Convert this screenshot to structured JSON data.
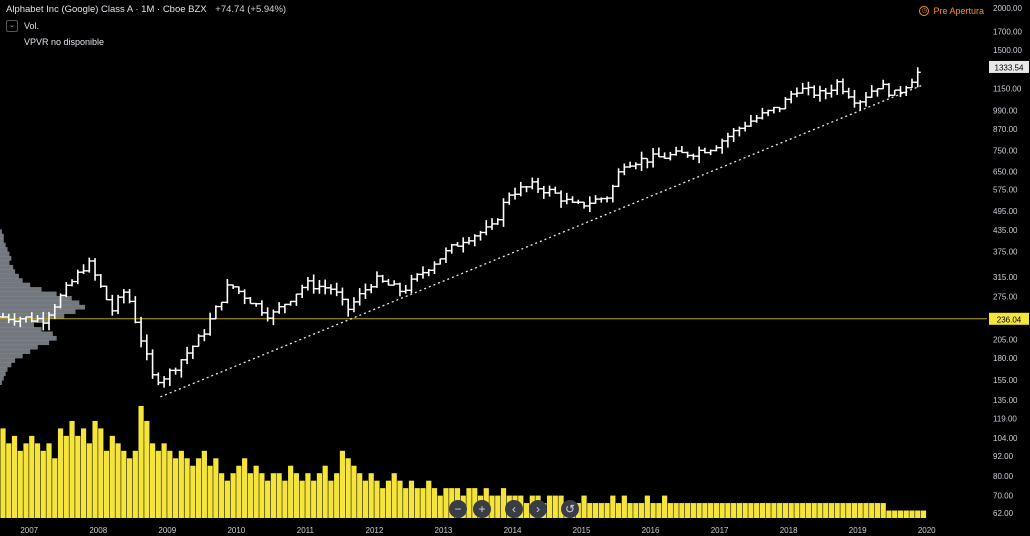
{
  "legend": {
    "symbol": "Alphabet Inc (Google) Class A · 1M · Cboe BZX",
    "change": "+74.74 (+5.94%)"
  },
  "vol_label": "Vol.",
  "vpvr_label": "VPVR  no disponible",
  "status_label": "Pre Apertura",
  "controls": [
    "−",
    "+",
    "‹",
    "›",
    "↺"
  ],
  "colors": {
    "volume": "#f5e53a",
    "line": "#ffffff",
    "hline": "#b8a200",
    "price_label": "#f5e53a"
  },
  "chart_data": {
    "type": "ohlc",
    "title": "Alphabet Inc (Google) Class A · 1M · Cboe BZX",
    "y_scale": "log",
    "ylim": [
      60,
      2000
    ],
    "yticks": [
      2000,
      1700,
      1500,
      1333.54,
      1150,
      990,
      870,
      750,
      650,
      575,
      495,
      435,
      375,
      315,
      275,
      236.04,
      205,
      180,
      155,
      135,
      119,
      104,
      92,
      80,
      70,
      62
    ],
    "xticks": [
      "2007",
      "2008",
      "2009",
      "2010",
      "2011",
      "2012",
      "2013",
      "2014",
      "2015",
      "2016",
      "2017",
      "2018",
      "2019",
      "2020"
    ],
    "last_price": 1333.54,
    "horizontal_line": 236.04,
    "trendline": {
      "from": [
        2008.9,
        138
      ],
      "to": [
        2019.95,
        1180
      ]
    },
    "anchors": [
      [
        2006.0,
        190
      ],
      [
        2006.5,
        240
      ],
      [
        2007.2,
        235
      ],
      [
        2007.85,
        350
      ],
      [
        2008.2,
        250
      ],
      [
        2008.4,
        290
      ],
      [
        2008.8,
        155
      ],
      [
        2009.0,
        160
      ],
      [
        2009.5,
        210
      ],
      [
        2009.9,
        300
      ],
      [
        2010.5,
        240
      ],
      [
        2011.0,
        300
      ],
      [
        2011.4,
        290
      ],
      [
        2011.6,
        250
      ],
      [
        2012.0,
        310
      ],
      [
        2012.4,
        285
      ],
      [
        2012.8,
        340
      ],
      [
        2013.3,
        410
      ],
      [
        2013.7,
        440
      ],
      [
        2013.95,
        560
      ],
      [
        2014.3,
        590
      ],
      [
        2014.6,
        560
      ],
      [
        2014.9,
        510
      ],
      [
        2015.4,
        550
      ],
      [
        2015.6,
        690
      ],
      [
        2016.0,
        710
      ],
      [
        2016.6,
        740
      ],
      [
        2016.9,
        770
      ],
      [
        2017.4,
        910
      ],
      [
        2017.9,
        1020
      ],
      [
        2018.1,
        1150
      ],
      [
        2018.5,
        1100
      ],
      [
        2018.7,
        1200
      ],
      [
        2019.0,
        1050
      ],
      [
        2019.3,
        1180
      ],
      [
        2019.55,
        1100
      ],
      [
        2019.95,
        1330
      ]
    ],
    "volume": [
      12,
      10,
      11,
      9,
      10,
      11,
      10,
      9,
      10,
      8,
      12,
      11,
      13,
      11,
      12,
      10,
      13,
      12,
      9,
      11,
      10,
      9,
      8,
      9,
      15,
      13,
      10,
      9,
      10,
      9,
      8,
      9,
      8,
      7,
      8,
      9,
      7,
      8,
      6,
      5,
      6,
      7,
      8,
      6,
      7,
      6,
      5,
      6,
      6,
      5,
      7,
      6,
      5,
      6,
      5,
      6,
      7,
      5,
      6,
      9,
      8,
      7,
      6,
      5,
      6,
      5,
      4,
      5,
      6,
      5,
      4,
      5,
      4,
      4,
      5,
      4,
      3,
      4,
      4,
      4,
      3,
      4,
      4,
      3,
      4,
      3,
      3,
      4,
      3,
      3,
      3,
      2,
      3,
      3,
      2,
      3,
      3,
      3,
      2,
      2,
      2,
      3,
      2,
      2,
      2,
      2,
      3,
      2,
      3,
      2,
      2,
      2,
      3,
      2,
      2,
      3,
      2,
      2,
      2,
      2,
      2,
      2,
      2,
      2,
      2,
      2,
      2,
      2,
      2,
      2,
      2,
      2,
      2,
      2,
      2,
      2,
      2,
      2,
      2,
      2,
      2,
      2,
      2,
      2,
      2,
      2,
      2,
      2,
      2,
      2,
      2,
      2,
      2,
      2,
      1,
      1,
      1,
      1,
      1,
      1,
      1,
      1,
      1,
      1,
      1,
      1,
      1,
      1
    ],
    "profile": [
      0,
      1,
      2,
      2,
      3,
      4,
      5,
      6,
      5,
      7,
      8,
      10,
      12,
      16,
      22,
      30,
      38,
      42,
      45,
      40,
      34,
      26,
      18,
      22,
      28,
      30,
      26,
      20,
      16,
      12,
      8,
      6,
      4,
      3,
      2,
      1
    ]
  }
}
